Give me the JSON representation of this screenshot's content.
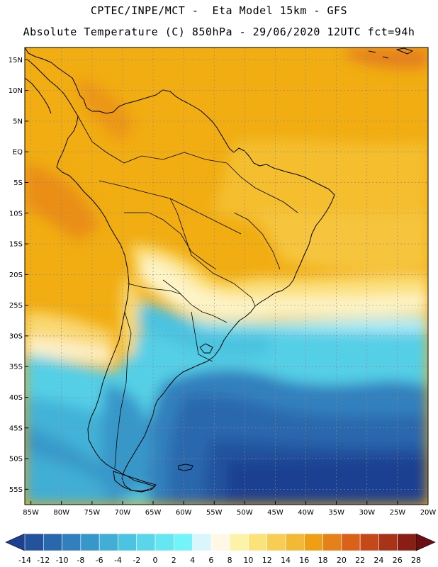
{
  "header": {
    "line1": "CPTEC/INPE/MCT -  Eta Model 15km - GFS",
    "line2": "Absolute Temperature (C) 850hPa - 29/06/2020 12UTC fct=94h"
  },
  "map": {
    "lon_range": [
      -86,
      -20
    ],
    "lat_range": [
      -57.5,
      17
    ],
    "lat_ticks": [
      {
        "value": 15,
        "label": "15N"
      },
      {
        "value": 10,
        "label": "10N"
      },
      {
        "value": 5,
        "label": "5N"
      },
      {
        "value": 0,
        "label": "EQ"
      },
      {
        "value": -5,
        "label": "5S"
      },
      {
        "value": -10,
        "label": "10S"
      },
      {
        "value": -15,
        "label": "15S"
      },
      {
        "value": -20,
        "label": "20S"
      },
      {
        "value": -25,
        "label": "25S"
      },
      {
        "value": -30,
        "label": "30S"
      },
      {
        "value": -35,
        "label": "35S"
      },
      {
        "value": -40,
        "label": "40S"
      },
      {
        "value": -45,
        "label": "45S"
      },
      {
        "value": -50,
        "label": "50S"
      },
      {
        "value": -55,
        "label": "55S"
      }
    ],
    "lon_ticks": [
      {
        "value": -85,
        "label": "85W"
      },
      {
        "value": -80,
        "label": "80W"
      },
      {
        "value": -75,
        "label": "75W"
      },
      {
        "value": -70,
        "label": "70W"
      },
      {
        "value": -65,
        "label": "65W"
      },
      {
        "value": -60,
        "label": "60W"
      },
      {
        "value": -55,
        "label": "55W"
      },
      {
        "value": -50,
        "label": "50W"
      },
      {
        "value": -45,
        "label": "45W"
      },
      {
        "value": -40,
        "label": "40W"
      },
      {
        "value": -35,
        "label": "35W"
      },
      {
        "value": -30,
        "label": "30W"
      },
      {
        "value": -25,
        "label": "25W"
      },
      {
        "value": -20,
        "label": "20W"
      }
    ]
  },
  "colorbar": {
    "labels": [
      "-14",
      "-12",
      "-10",
      "-8",
      "-6",
      "-4",
      "-2",
      "0",
      "2",
      "4",
      "6",
      "8",
      "10",
      "12",
      "14",
      "16",
      "18",
      "20",
      "22",
      "24",
      "26",
      "28"
    ],
    "colors": [
      "#1f3f91",
      "#24539e",
      "#2a68ad",
      "#3180bd",
      "#3897c9",
      "#41aed5",
      "#4cc3e0",
      "#5ad5ea",
      "#66e6f2",
      "#72f4fa",
      "#d8f6fb",
      "#fff8e6",
      "#fdf3a8",
      "#fbe27a",
      "#f7cd54",
      "#f2b935",
      "#ee9f16",
      "#e6801a",
      "#d9611a",
      "#c4481a",
      "#a83318",
      "#8a1e14",
      "#6b0f14"
    ]
  }
}
